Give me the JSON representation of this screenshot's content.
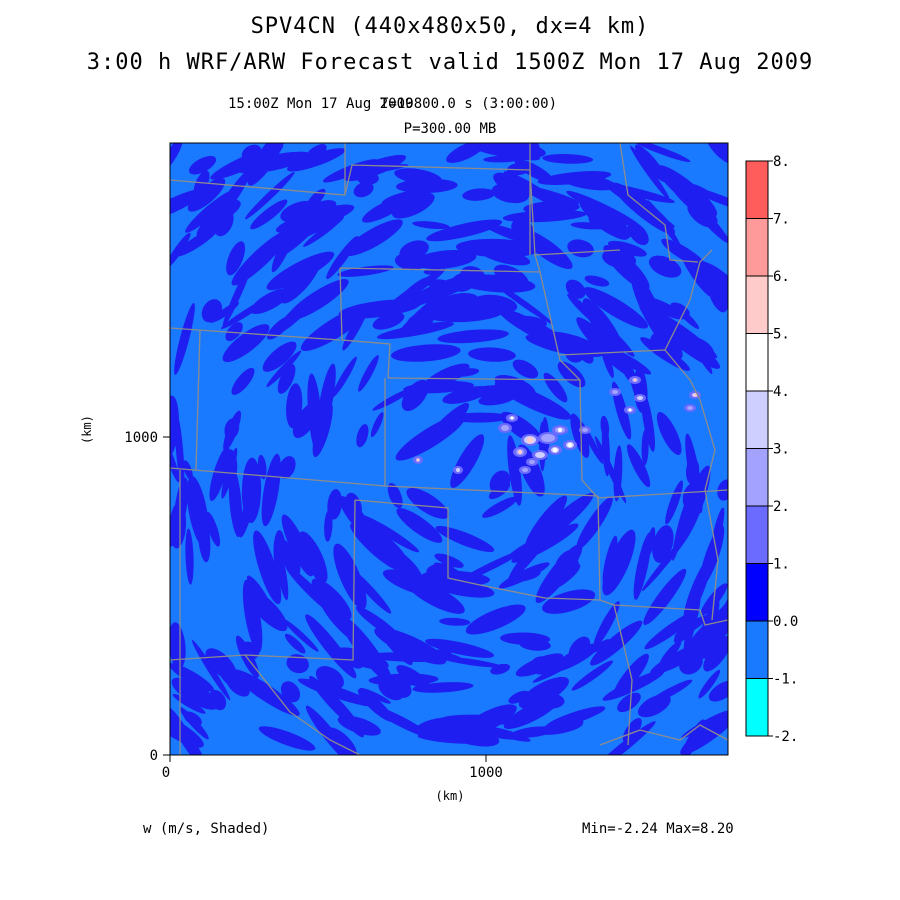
{
  "title": {
    "line1": "SPV4CN (440x480x50, dx=4 km)",
    "line2": "3:00 h WRF/ARW Forecast valid 1500Z Mon 17 Aug 2009"
  },
  "subtitle": {
    "valid_time": "15:00Z Mon 17 Aug 2009",
    "model_time": "T=10800.0 s (3:00:00)",
    "level": "P=300.00 MB"
  },
  "axes": {
    "x_label": "(km)",
    "y_label": "(km)",
    "x_ticks": [
      "0",
      "1000"
    ],
    "y_ticks": [
      "0",
      "1000"
    ]
  },
  "colorbar": {
    "labels": [
      "8.",
      "7.",
      "6.",
      "5.",
      "4.",
      "3.",
      "2.",
      "1.",
      "0.0",
      "-1.",
      "-2."
    ],
    "colors": [
      "#ff5c5c",
      "#ff9a9a",
      "#ffcaca",
      "#ffffff",
      "#cfcfff",
      "#a3a3ff",
      "#6b6bff",
      "#0000ff",
      "#1a7aff",
      "#00ffff"
    ]
  },
  "field": {
    "variable": "w (m/s, Shaded)",
    "stats": "Min=-2.24 Max=8.20"
  },
  "colors": {
    "background_field": "#1a7aff",
    "updraft_field": "#1e1ef0",
    "boundaries": "#8c8c8c"
  }
}
